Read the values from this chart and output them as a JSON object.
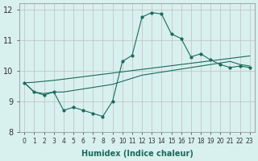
{
  "x": [
    0,
    1,
    2,
    3,
    4,
    5,
    6,
    7,
    8,
    9,
    10,
    11,
    12,
    13,
    14,
    15,
    16,
    17,
    18,
    19,
    20,
    21,
    22,
    23
  ],
  "y_main": [
    9.6,
    9.3,
    9.2,
    9.3,
    8.7,
    8.8,
    8.7,
    8.6,
    8.5,
    9.0,
    10.3,
    10.5,
    11.75,
    11.9,
    11.85,
    11.2,
    11.05,
    10.45,
    10.55,
    10.35,
    10.2,
    10.1,
    10.15,
    10.1
  ],
  "y_line1": [
    9.6,
    9.3,
    9.25,
    9.3,
    9.3,
    9.35,
    9.4,
    9.45,
    9.5,
    9.55,
    9.65,
    9.75,
    9.85,
    9.9,
    9.95,
    10.0,
    10.05,
    10.1,
    10.15,
    10.2,
    10.25,
    10.3,
    10.2,
    10.15
  ],
  "y_line2": [
    9.6,
    9.62,
    9.65,
    9.68,
    9.72,
    9.76,
    9.8,
    9.84,
    9.88,
    9.92,
    9.96,
    10.0,
    10.04,
    10.08,
    10.12,
    10.16,
    10.2,
    10.24,
    10.28,
    10.32,
    10.36,
    10.4,
    10.44,
    10.48
  ],
  "background_color": "#d8f0ee",
  "grid_color": "#c0c0c0",
  "line_color": "#1a6b5a",
  "xlabel": "Humidex (Indice chaleur)",
  "ylim": [
    8,
    12.2
  ],
  "xlim": [
    -0.5,
    23.5
  ],
  "yticks": [
    8,
    9,
    10,
    11,
    12
  ],
  "xticks": [
    0,
    1,
    2,
    3,
    4,
    5,
    6,
    7,
    8,
    9,
    10,
    11,
    12,
    13,
    14,
    15,
    16,
    17,
    18,
    19,
    20,
    21,
    22,
    23
  ]
}
